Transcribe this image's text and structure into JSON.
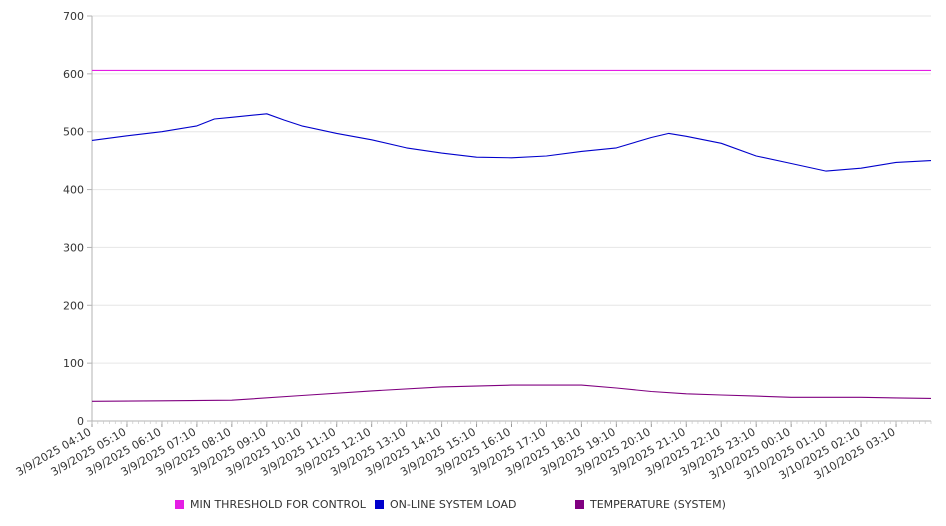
{
  "chart_data": {
    "type": "line",
    "title": "",
    "xlabel": "",
    "ylabel": "",
    "ylim": [
      0,
      700
    ],
    "y_ticks": [
      0,
      100,
      200,
      300,
      400,
      500,
      600,
      700
    ],
    "x_range": [
      "3/9/2025 04:10",
      "3/10/2025 04:10"
    ],
    "x_tick_labels": [
      "3/9/2025 04:10",
      "3/9/2025 05:10",
      "3/9/2025 06:10",
      "3/9/2025 07:10",
      "3/9/2025 08:10",
      "3/9/2025 09:10",
      "3/9/2025 10:10",
      "3/9/2025 11:10",
      "3/9/2025 12:10",
      "3/9/2025 13:10",
      "3/9/2025 14:10",
      "3/9/2025 15:10",
      "3/9/2025 16:10",
      "3/9/2025 17:10",
      "3/9/2025 18:10",
      "3/9/2025 19:10",
      "3/9/2025 20:10",
      "3/9/2025 21:10",
      "3/9/2025 22:10",
      "3/9/2025 23:10",
      "3/10/2025 00:10",
      "3/10/2025 01:10",
      "3/10/2025 02:10",
      "3/10/2025 03:10"
    ],
    "grid": "horizontal",
    "legend_position": "bottom",
    "series": [
      {
        "name": "MIN THRESHOLD FOR CONTROL",
        "color": "#e41ee4",
        "x": [
          "3/9/2025 04:10",
          "3/10/2025 04:10"
        ],
        "values": [
          606,
          606
        ]
      },
      {
        "name": "ON-LINE SYSTEM LOAD",
        "color": "#0000cc",
        "x": [
          "3/9/2025 04:10",
          "3/9/2025 05:10",
          "3/9/2025 06:10",
          "3/9/2025 07:10",
          "3/9/2025 07:40",
          "3/9/2025 08:10",
          "3/9/2025 09:10",
          "3/9/2025 09:40",
          "3/9/2025 10:10",
          "3/9/2025 11:10",
          "3/9/2025 12:10",
          "3/9/2025 13:10",
          "3/9/2025 14:10",
          "3/9/2025 15:10",
          "3/9/2025 16:10",
          "3/9/2025 17:10",
          "3/9/2025 18:10",
          "3/9/2025 19:10",
          "3/9/2025 20:10",
          "3/9/2025 20:40",
          "3/9/2025 21:10",
          "3/9/2025 22:10",
          "3/9/2025 23:10",
          "3/10/2025 00:10",
          "3/10/2025 01:10",
          "3/10/2025 02:10",
          "3/10/2025 03:10",
          "3/10/2025 04:10"
        ],
        "values": [
          485,
          493,
          500,
          510,
          522,
          525,
          531,
          520,
          510,
          497,
          486,
          472,
          463,
          456,
          455,
          458,
          466,
          472,
          490,
          497,
          492,
          480,
          458,
          445,
          432,
          437,
          447,
          450
        ]
      },
      {
        "name": "TEMPERATURE (SYSTEM)",
        "color": "#800080",
        "x": [
          "3/9/2025 04:10",
          "3/9/2025 06:10",
          "3/9/2025 08:10",
          "3/9/2025 10:10",
          "3/9/2025 12:10",
          "3/9/2025 14:10",
          "3/9/2025 16:10",
          "3/9/2025 18:10",
          "3/9/2025 19:10",
          "3/9/2025 20:10",
          "3/9/2025 21:10",
          "3/9/2025 22:10",
          "3/9/2025 23:10",
          "3/10/2025 00:10",
          "3/10/2025 01:10",
          "3/10/2025 02:10",
          "3/10/2025 03:10",
          "3/10/2025 04:10"
        ],
        "values": [
          34,
          35,
          36,
          44,
          52,
          59,
          62,
          62,
          57,
          51,
          47,
          45,
          43,
          41,
          41,
          41,
          40,
          39
        ]
      }
    ]
  }
}
